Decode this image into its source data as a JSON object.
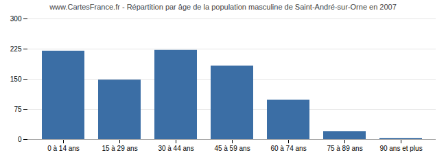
{
  "chart_data": {
    "type": "bar",
    "title": "www.CartesFrance.fr - Répartition par âge de la population masculine de Saint-André-sur-Orne en 2007",
    "categories": [
      "0 à 14 ans",
      "15 à 29 ans",
      "30 à 44 ans",
      "45 à 59 ans",
      "60 à 74 ans",
      "75 à 89 ans",
      "90 ans et plus"
    ],
    "values": [
      220,
      148,
      222,
      183,
      98,
      20,
      3
    ],
    "color": "#3B6EA5",
    "ylim": [
      0,
      300
    ],
    "yticks": [
      0,
      75,
      150,
      225,
      300
    ],
    "grid": true
  }
}
